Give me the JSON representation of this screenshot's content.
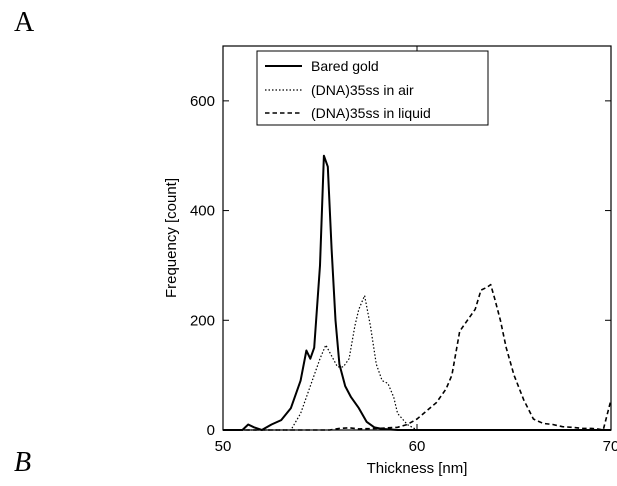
{
  "panels": {
    "top": "A",
    "bottom": "B"
  },
  "chart_data": {
    "type": "line",
    "title": "",
    "xlabel": "Thickness [nm]",
    "ylabel": "Frequency [count]",
    "xlim": [
      50,
      70
    ],
    "ylim": [
      0,
      700
    ],
    "xticks": [
      50,
      60,
      70
    ],
    "yticks": [
      0,
      200,
      400,
      600
    ],
    "grid": false,
    "legend_position": "top-center",
    "series": [
      {
        "name": "Bared gold",
        "style": "solid",
        "x": [
          50,
          51,
          51.3,
          51.6,
          52,
          52.5,
          53,
          53.5,
          54,
          54.3,
          54.5,
          54.7,
          55,
          55.2,
          55.4,
          55.6,
          55.8,
          56,
          56.3,
          56.6,
          57,
          57.4,
          57.8,
          58.2,
          59,
          60,
          70
        ],
        "y": [
          0,
          0,
          10,
          5,
          0,
          10,
          18,
          40,
          90,
          145,
          130,
          150,
          300,
          500,
          480,
          330,
          200,
          120,
          80,
          60,
          40,
          15,
          5,
          2,
          0,
          0,
          0
        ]
      },
      {
        "name": "(DNA)35ss in air",
        "style": "dotted",
        "x": [
          50,
          53.5,
          54,
          54.5,
          55,
          55.3,
          55.6,
          55.9,
          56.2,
          56.5,
          56.8,
          57,
          57.3,
          57.6,
          57.9,
          58.2,
          58.5,
          58.8,
          59,
          59.5,
          60,
          70
        ],
        "y": [
          0,
          0,
          30,
          80,
          130,
          155,
          135,
          115,
          115,
          130,
          190,
          220,
          245,
          190,
          120,
          90,
          85,
          60,
          30,
          10,
          0,
          0
        ]
      },
      {
        "name": "(DNA)35ss in liquid",
        "style": "dashed",
        "x": [
          50,
          55.5,
          56,
          56.5,
          57,
          58,
          59,
          59.5,
          60,
          60.5,
          61,
          61.5,
          61.8,
          62.2,
          62.6,
          63,
          63.3,
          63.6,
          63.8,
          64,
          64.3,
          64.6,
          65,
          65.5,
          66,
          66.5,
          67,
          67.5,
          68,
          68.5,
          69,
          69.3,
          69.6,
          70
        ],
        "y": [
          0,
          0,
          3,
          4,
          2,
          3,
          5,
          10,
          20,
          35,
          50,
          75,
          100,
          180,
          200,
          220,
          255,
          260,
          265,
          240,
          200,
          150,
          100,
          55,
          20,
          12,
          10,
          6,
          5,
          3,
          3,
          2,
          0,
          55
        ]
      }
    ]
  }
}
